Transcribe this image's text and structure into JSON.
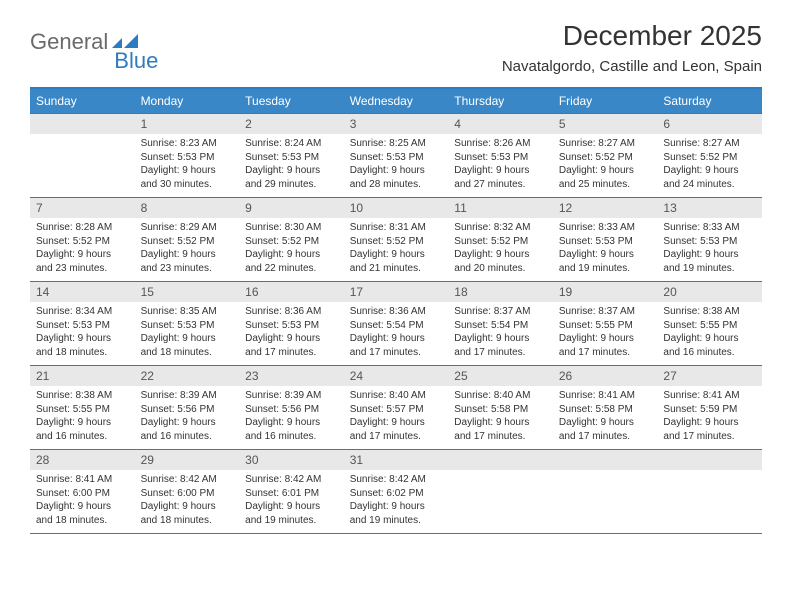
{
  "logo": {
    "text1": "General",
    "text2": "Blue"
  },
  "title": "December 2025",
  "location": "Navatalgordo, Castille and Leon, Spain",
  "colors": {
    "header_bg": "#3a87c7",
    "rule": "#2f7bbf",
    "daynum_bg": "#e8e8e8",
    "text": "#333333"
  },
  "day_names": [
    "Sunday",
    "Monday",
    "Tuesday",
    "Wednesday",
    "Thursday",
    "Friday",
    "Saturday"
  ],
  "weeks": [
    [
      {
        "n": "",
        "sr": "",
        "ss": "",
        "dl": ""
      },
      {
        "n": "1",
        "sr": "Sunrise: 8:23 AM",
        "ss": "Sunset: 5:53 PM",
        "dl": "Daylight: 9 hours and 30 minutes."
      },
      {
        "n": "2",
        "sr": "Sunrise: 8:24 AM",
        "ss": "Sunset: 5:53 PM",
        "dl": "Daylight: 9 hours and 29 minutes."
      },
      {
        "n": "3",
        "sr": "Sunrise: 8:25 AM",
        "ss": "Sunset: 5:53 PM",
        "dl": "Daylight: 9 hours and 28 minutes."
      },
      {
        "n": "4",
        "sr": "Sunrise: 8:26 AM",
        "ss": "Sunset: 5:53 PM",
        "dl": "Daylight: 9 hours and 27 minutes."
      },
      {
        "n": "5",
        "sr": "Sunrise: 8:27 AM",
        "ss": "Sunset: 5:52 PM",
        "dl": "Daylight: 9 hours and 25 minutes."
      },
      {
        "n": "6",
        "sr": "Sunrise: 8:27 AM",
        "ss": "Sunset: 5:52 PM",
        "dl": "Daylight: 9 hours and 24 minutes."
      }
    ],
    [
      {
        "n": "7",
        "sr": "Sunrise: 8:28 AM",
        "ss": "Sunset: 5:52 PM",
        "dl": "Daylight: 9 hours and 23 minutes."
      },
      {
        "n": "8",
        "sr": "Sunrise: 8:29 AM",
        "ss": "Sunset: 5:52 PM",
        "dl": "Daylight: 9 hours and 23 minutes."
      },
      {
        "n": "9",
        "sr": "Sunrise: 8:30 AM",
        "ss": "Sunset: 5:52 PM",
        "dl": "Daylight: 9 hours and 22 minutes."
      },
      {
        "n": "10",
        "sr": "Sunrise: 8:31 AM",
        "ss": "Sunset: 5:52 PM",
        "dl": "Daylight: 9 hours and 21 minutes."
      },
      {
        "n": "11",
        "sr": "Sunrise: 8:32 AM",
        "ss": "Sunset: 5:52 PM",
        "dl": "Daylight: 9 hours and 20 minutes."
      },
      {
        "n": "12",
        "sr": "Sunrise: 8:33 AM",
        "ss": "Sunset: 5:53 PM",
        "dl": "Daylight: 9 hours and 19 minutes."
      },
      {
        "n": "13",
        "sr": "Sunrise: 8:33 AM",
        "ss": "Sunset: 5:53 PM",
        "dl": "Daylight: 9 hours and 19 minutes."
      }
    ],
    [
      {
        "n": "14",
        "sr": "Sunrise: 8:34 AM",
        "ss": "Sunset: 5:53 PM",
        "dl": "Daylight: 9 hours and 18 minutes."
      },
      {
        "n": "15",
        "sr": "Sunrise: 8:35 AM",
        "ss": "Sunset: 5:53 PM",
        "dl": "Daylight: 9 hours and 18 minutes."
      },
      {
        "n": "16",
        "sr": "Sunrise: 8:36 AM",
        "ss": "Sunset: 5:53 PM",
        "dl": "Daylight: 9 hours and 17 minutes."
      },
      {
        "n": "17",
        "sr": "Sunrise: 8:36 AM",
        "ss": "Sunset: 5:54 PM",
        "dl": "Daylight: 9 hours and 17 minutes."
      },
      {
        "n": "18",
        "sr": "Sunrise: 8:37 AM",
        "ss": "Sunset: 5:54 PM",
        "dl": "Daylight: 9 hours and 17 minutes."
      },
      {
        "n": "19",
        "sr": "Sunrise: 8:37 AM",
        "ss": "Sunset: 5:55 PM",
        "dl": "Daylight: 9 hours and 17 minutes."
      },
      {
        "n": "20",
        "sr": "Sunrise: 8:38 AM",
        "ss": "Sunset: 5:55 PM",
        "dl": "Daylight: 9 hours and 16 minutes."
      }
    ],
    [
      {
        "n": "21",
        "sr": "Sunrise: 8:38 AM",
        "ss": "Sunset: 5:55 PM",
        "dl": "Daylight: 9 hours and 16 minutes."
      },
      {
        "n": "22",
        "sr": "Sunrise: 8:39 AM",
        "ss": "Sunset: 5:56 PM",
        "dl": "Daylight: 9 hours and 16 minutes."
      },
      {
        "n": "23",
        "sr": "Sunrise: 8:39 AM",
        "ss": "Sunset: 5:56 PM",
        "dl": "Daylight: 9 hours and 16 minutes."
      },
      {
        "n": "24",
        "sr": "Sunrise: 8:40 AM",
        "ss": "Sunset: 5:57 PM",
        "dl": "Daylight: 9 hours and 17 minutes."
      },
      {
        "n": "25",
        "sr": "Sunrise: 8:40 AM",
        "ss": "Sunset: 5:58 PM",
        "dl": "Daylight: 9 hours and 17 minutes."
      },
      {
        "n": "26",
        "sr": "Sunrise: 8:41 AM",
        "ss": "Sunset: 5:58 PM",
        "dl": "Daylight: 9 hours and 17 minutes."
      },
      {
        "n": "27",
        "sr": "Sunrise: 8:41 AM",
        "ss": "Sunset: 5:59 PM",
        "dl": "Daylight: 9 hours and 17 minutes."
      }
    ],
    [
      {
        "n": "28",
        "sr": "Sunrise: 8:41 AM",
        "ss": "Sunset: 6:00 PM",
        "dl": "Daylight: 9 hours and 18 minutes."
      },
      {
        "n": "29",
        "sr": "Sunrise: 8:42 AM",
        "ss": "Sunset: 6:00 PM",
        "dl": "Daylight: 9 hours and 18 minutes."
      },
      {
        "n": "30",
        "sr": "Sunrise: 8:42 AM",
        "ss": "Sunset: 6:01 PM",
        "dl": "Daylight: 9 hours and 19 minutes."
      },
      {
        "n": "31",
        "sr": "Sunrise: 8:42 AM",
        "ss": "Sunset: 6:02 PM",
        "dl": "Daylight: 9 hours and 19 minutes."
      },
      {
        "n": "",
        "sr": "",
        "ss": "",
        "dl": ""
      },
      {
        "n": "",
        "sr": "",
        "ss": "",
        "dl": ""
      },
      {
        "n": "",
        "sr": "",
        "ss": "",
        "dl": ""
      }
    ]
  ]
}
